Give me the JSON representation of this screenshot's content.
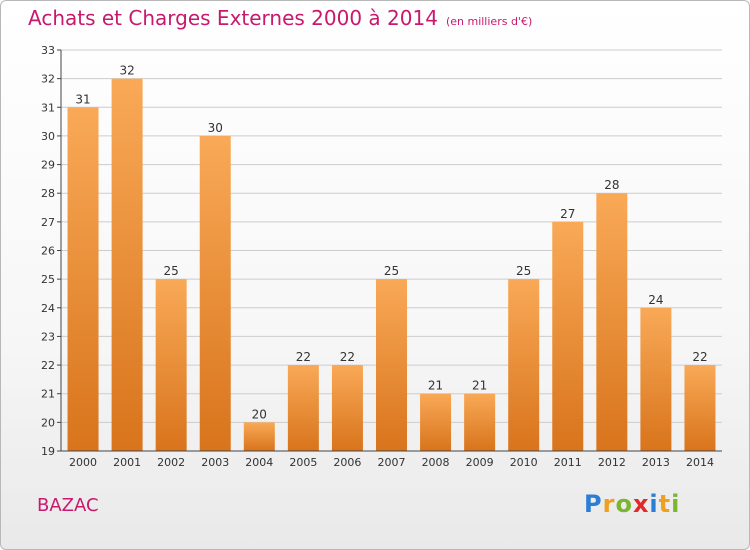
{
  "title": "Achats et Charges Externes 2000 à 2014",
  "subtitle": "(en milliers d'€)",
  "commune": "BAZAC",
  "logo": {
    "letters": [
      "P",
      "r",
      "o",
      "x",
      "i",
      "t",
      "i"
    ],
    "colors": [
      "#2a7fd4",
      "#f0a020",
      "#7ab62e",
      "#e02a2a",
      "#2a7fd4",
      "#f0a020",
      "#7ab62e"
    ]
  },
  "colors": {
    "title": "#c8196e",
    "bar_top": "#f9a957",
    "bar_bottom": "#d8741c",
    "grid": "#cccccc"
  },
  "chart_data": {
    "type": "bar",
    "title": "Achats et Charges Externes 2000 à 2014",
    "subtitle": "(en milliers d'€)",
    "categories": [
      "2000",
      "2001",
      "2002",
      "2003",
      "2004",
      "2005",
      "2006",
      "2007",
      "2008",
      "2009",
      "2010",
      "2011",
      "2012",
      "2013",
      "2014"
    ],
    "values": [
      31,
      32,
      25,
      30,
      20,
      22,
      22,
      25,
      21,
      21,
      25,
      27,
      28,
      24,
      22
    ],
    "ylim": [
      19,
      33
    ],
    "yticks": [
      19,
      20,
      21,
      22,
      23,
      24,
      25,
      26,
      27,
      28,
      29,
      30,
      31,
      32,
      33
    ],
    "grid": true,
    "xlabel": "",
    "ylabel": ""
  }
}
